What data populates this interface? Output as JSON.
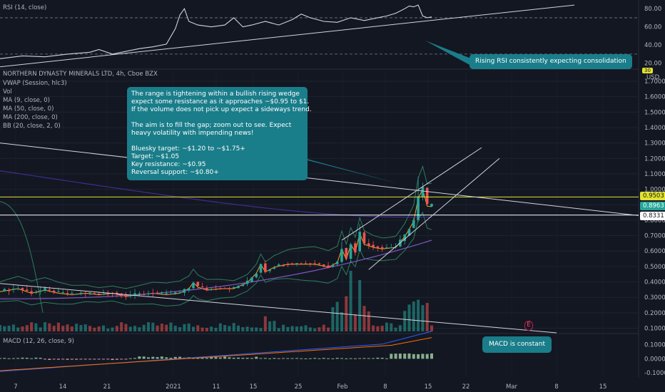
{
  "chart_data": {
    "type": "candlestick",
    "symbol_title": "NORTHERN DYNASTY MINERALS LTD, 4h, Cboe BZX",
    "indicators": [
      "VWAP (Session, hlc3)",
      "Vol",
      "MA (9, close, 0)",
      "MA (50, close, 0)",
      "MA (200, close, 0)",
      "BB (20, close, 2, 0)"
    ],
    "price_axis": {
      "ticks": [
        "1.7000",
        "1.6000",
        "1.5000",
        "1.4000",
        "1.3000",
        "1.2000",
        "1.1000",
        "1.0000",
        "0.9000",
        "0.8000",
        "0.7000",
        "0.6000",
        "0.5000",
        "0.4000",
        "0.3000",
        "0.2000",
        "0.1000"
      ],
      "ylim": [
        0.07,
        1.76
      ],
      "currency": "USD"
    },
    "x_ticks": [
      "7",
      "14",
      "21",
      "2021",
      "11",
      "15",
      "25",
      "Feb",
      "8",
      "15",
      "22",
      "Mar",
      "8",
      "15"
    ],
    "price_tags": {
      "current": "0.8963",
      "resistance": "0.9503",
      "support": "0.8331",
      "rsi_line": "30"
    },
    "close_path": [
      [
        0,
        0.34
      ],
      [
        4,
        0.36
      ],
      [
        7,
        0.33
      ],
      [
        10,
        0.35
      ],
      [
        13,
        0.33
      ],
      [
        16,
        0.32
      ],
      [
        19,
        0.33
      ],
      [
        22,
        0.32
      ],
      [
        25,
        0.33
      ],
      [
        28,
        0.31
      ],
      [
        31,
        0.32
      ],
      [
        34,
        0.33
      ],
      [
        37,
        0.32
      ],
      [
        40,
        0.33
      ],
      [
        42,
        0.36
      ],
      [
        43,
        0.4
      ],
      [
        44,
        0.37
      ],
      [
        46,
        0.35
      ],
      [
        49,
        0.36
      ],
      [
        52,
        0.36
      ],
      [
        55,
        0.4
      ],
      [
        57,
        0.46
      ],
      [
        58,
        0.52
      ],
      [
        59,
        0.47
      ],
      [
        61,
        0.5
      ],
      [
        64,
        0.52
      ],
      [
        67,
        0.52
      ],
      [
        70,
        0.52
      ],
      [
        73,
        0.5
      ],
      [
        75,
        0.53
      ],
      [
        76,
        0.62
      ],
      [
        77,
        0.55
      ],
      [
        78,
        0.65
      ],
      [
        79,
        0.6
      ],
      [
        80,
        0.72
      ],
      [
        81,
        0.65
      ],
      [
        83,
        0.63
      ],
      [
        85,
        0.62
      ],
      [
        88,
        0.63
      ],
      [
        90,
        0.7
      ],
      [
        92,
        0.8
      ],
      [
        93,
        0.95
      ],
      [
        94,
        1.01
      ],
      [
        95,
        0.9
      ],
      [
        96,
        0.8961
      ]
    ],
    "rsi": {
      "label": "RSI (14, close)",
      "ticks": [
        "80.00",
        "60.00",
        "40.00",
        "20.00"
      ],
      "ylim": [
        15,
        88
      ],
      "values": [
        [
          0,
          25
        ],
        [
          5,
          28
        ],
        [
          10,
          27
        ],
        [
          15,
          30
        ],
        [
          20,
          32
        ],
        [
          22,
          35
        ],
        [
          25,
          30
        ],
        [
          28,
          33
        ],
        [
          31,
          36
        ],
        [
          34,
          38
        ],
        [
          37,
          41
        ],
        [
          39,
          58
        ],
        [
          40,
          73
        ],
        [
          41,
          80
        ],
        [
          42,
          66
        ],
        [
          44,
          62
        ],
        [
          47,
          60
        ],
        [
          50,
          62
        ],
        [
          52,
          70
        ],
        [
          54,
          60
        ],
        [
          56,
          62
        ],
        [
          59,
          66
        ],
        [
          62,
          62
        ],
        [
          65,
          68
        ],
        [
          67,
          74
        ],
        [
          69,
          70
        ],
        [
          72,
          66
        ],
        [
          75,
          65
        ],
        [
          78,
          70
        ],
        [
          81,
          67
        ],
        [
          84,
          70
        ],
        [
          86,
          72
        ],
        [
          88,
          75
        ],
        [
          90,
          80
        ],
        [
          91,
          83
        ],
        [
          92,
          82
        ],
        [
          93,
          84
        ],
        [
          94,
          72
        ],
        [
          95,
          70
        ],
        [
          96,
          71
        ]
      ]
    },
    "macd": {
      "label": "MACD (12, 26, close, 9)",
      "ticks": [
        "0.1000",
        "0.0000",
        "-0.1000"
      ],
      "ylim": [
        -0.125,
        0.18
      ]
    },
    "annotations": {
      "main_box": [
        "The range is tightening within a bullish rising wedge",
        "expect some resistance as it approaches ~$0.95 to $1.",
        "If the volume does not pick up expect a sideways trend.",
        "",
        "The aim is to fill the gap; zoom out to see. Expect",
        "heavy volatility with impending news!",
        "",
        "Bluesky target: ~$1.20 to ~$1.75+",
        "Target: ~$1.05",
        "Key resistance: ~$0.95",
        "Reversal support: ~$0.80+"
      ],
      "rsi_note": "Rising RSI consistently expecting consolidation",
      "macd_note": "MACD is constant",
      "event_marker": "E"
    }
  }
}
